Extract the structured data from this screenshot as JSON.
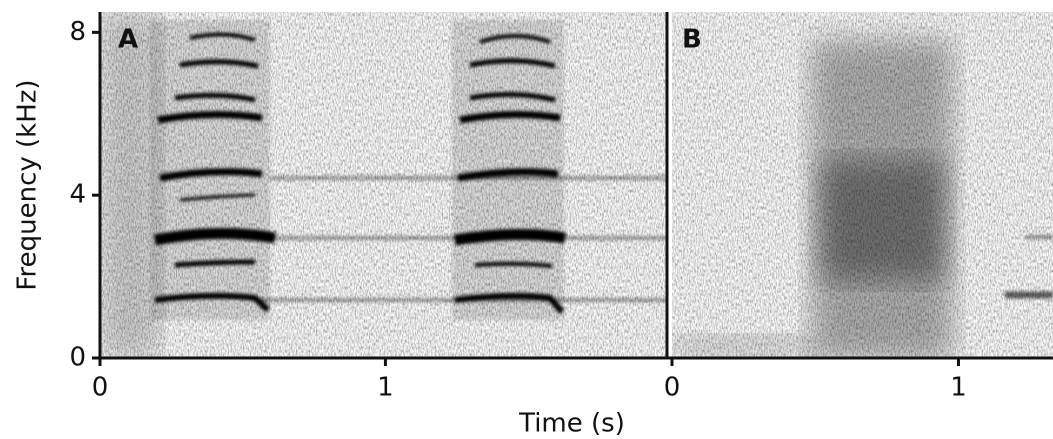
{
  "chart_data": [
    {
      "type": "spectrogram",
      "label": "A",
      "xlim": [
        0,
        1.99
      ],
      "xticks": [
        0,
        1
      ],
      "ylim": [
        0,
        8.5
      ],
      "yticks": [
        0,
        4,
        8
      ],
      "ylabel": "Frequency (kHz)",
      "xlabel": "Time (s)"
    },
    {
      "type": "spectrogram",
      "label": "B",
      "xlim": [
        0,
        1.33
      ],
      "xticks": [
        0,
        1
      ],
      "ylim": [
        0,
        8.5
      ]
    }
  ]
}
